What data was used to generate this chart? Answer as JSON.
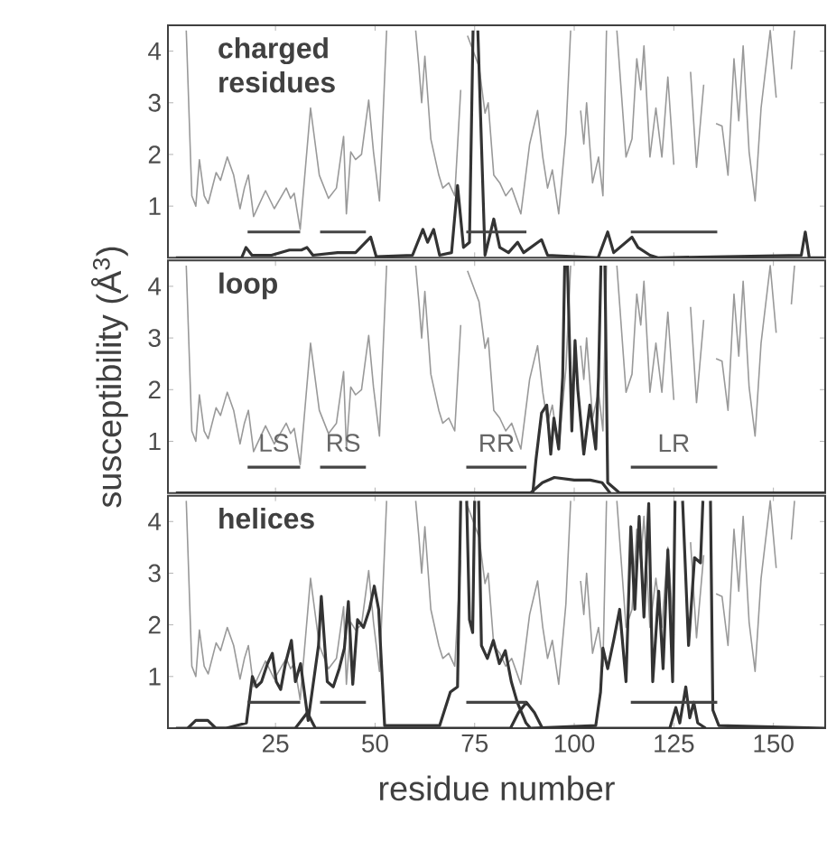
{
  "chart_data": [
    {
      "type": "line",
      "title": "charged residues",
      "xlim": [
        -2,
        163
      ],
      "ylim": [
        0,
        4.5
      ],
      "xticks": [
        25,
        50,
        75,
        100,
        125,
        150
      ],
      "yticks": [
        1,
        2,
        3,
        4
      ],
      "tick_labels": "y",
      "series": [
        {
          "color": "#999999",
          "x": [
            2.6,
            4.0,
            5.0,
            5.9,
            7.1,
            8.1,
            10.1,
            11.2,
            12.9,
            14.5,
            16.1,
            17.2,
            18.2,
            19.5,
            22.5,
            24.7,
            27.7,
            28.8,
            29.7,
            31.2,
            33.8,
            36.0,
            38.3,
            40.3,
            42.1,
            42.8,
            43.9,
            45.1,
            46.6,
            48.4,
            49.6,
            51.1,
            52.9,
            56,
            60.2,
            61.0,
            61.7,
            62.5,
            64.0,
            66.0,
            67.0,
            68.5,
            70.0,
            71.5,
            72.5,
            73.2,
            76.1,
            77.6,
            78.4,
            79.8,
            81.3,
            82.8,
            84.3,
            86.6,
            88.8,
            90.8,
            92.1,
            93.3,
            94.5,
            96.1,
            97.9,
            99.1,
            100.5,
            101.6,
            102.4,
            103.1,
            104.6,
            106.1,
            107.2,
            108.1,
            109.5,
            110.7,
            113.0,
            114.5,
            115.7,
            116.7,
            117.5,
            119.0,
            120.5,
            122.0,
            123.5,
            125.0,
            127,
            129.2,
            130.7,
            132.5,
            134.0,
            135.6,
            137.1,
            138.6,
            140.1,
            141.3,
            142.4,
            143.9,
            145.4,
            146.9,
            149.2,
            150.7,
            152.2,
            154.5,
            155.3
          ],
          "values": [
            4.4,
            1.2,
            1.0,
            1.9,
            1.2,
            1.05,
            1.65,
            1.5,
            1.95,
            1.6,
            0.95,
            1.35,
            1.6,
            0.8,
            1.3,
            0.95,
            1.35,
            1.15,
            1.25,
            0.55,
            2.9,
            1.6,
            1.15,
            1.35,
            2.35,
            0.85,
            2.05,
            1.9,
            2.0,
            3.05,
            2.05,
            1.1,
            4.4,
            null,
            4.4,
            3.7,
            3.0,
            3.9,
            2.3,
            1.6,
            1.35,
            1.45,
            1.2,
            3.25,
            null,
            4.3,
            3.7,
            2.8,
            3.0,
            1.6,
            1.45,
            1.2,
            1.35,
            0.85,
            2.2,
            2.85,
            1.95,
            1.35,
            1.7,
            0.85,
            2.4,
            4.4,
            null,
            2.85,
            2.2,
            3.0,
            1.45,
            1.95,
            1.2,
            4.4,
            null,
            4.4,
            1.95,
            2.3,
            3.85,
            3.25,
            4.1,
            1.95,
            2.9,
            1.95,
            3.5,
            1.8,
            null,
            3.6,
            1.75,
            3.35,
            null,
            2.6,
            2.55,
            1.6,
            3.85,
            2.65,
            4.1,
            2.05,
            1.1,
            2.9,
            4.4,
            3.1,
            null,
            3.65,
            4.4
          ]
        },
        {
          "color": "#333333",
          "x": [
            0,
            16.5,
            17.6,
            19.1,
            24,
            28.5,
            31.5,
            32.9,
            34.4,
            40.6,
            45.1,
            48.9,
            50.3,
            59.4,
            62,
            63.2,
            64.7,
            66.2,
            69.2,
            70.7,
            72.2,
            73.7,
            74.6,
            75.2,
            75.8,
            77.6,
            79.8,
            81.3,
            83.5,
            85.8,
            87.3,
            91.8,
            93.3,
            106,
            108.4,
            109.9,
            114.5,
            116,
            119,
            121,
            157,
            158,
            159,
            163
          ],
          "values": [
            0,
            0,
            0.2,
            0.05,
            0.05,
            0.15,
            0.15,
            0.2,
            0.05,
            0.1,
            0.1,
            0.4,
            0.02,
            0.05,
            0.55,
            0.3,
            0.55,
            0.05,
            0.1,
            1.4,
            0.2,
            0.3,
            4.4,
            null,
            4.4,
            0.05,
            0.75,
            0.2,
            0.1,
            0.3,
            0.1,
            0.35,
            0.05,
            0,
            0.5,
            0.1,
            0.4,
            0.2,
            0.05,
            0,
            0.05,
            0.5,
            0,
            0
          ]
        },
        {
          "color": "#444444",
          "x": [
            18,
            31.2
          ],
          "values": [
            0.5,
            0.5
          ]
        },
        {
          "color": "#444444",
          "x": [
            36.2,
            47.7
          ],
          "values": [
            0.5,
            0.5
          ]
        },
        {
          "color": "#444444",
          "x": [
            72.9,
            88
          ],
          "values": [
            0.5,
            0.5
          ]
        },
        {
          "color": "#444444",
          "x": [
            114.2,
            135.9
          ],
          "values": [
            0.5,
            0.5
          ]
        }
      ]
    },
    {
      "type": "line",
      "title": "loop",
      "ylabel": "susceptibility (Å$^{3}$)",
      "xlim": [
        -2,
        163
      ],
      "ylim": [
        0,
        4.5
      ],
      "xticks": [
        25,
        50,
        75,
        100,
        125,
        150
      ],
      "yticks": [
        1,
        2,
        3,
        4
      ],
      "tick_labels": "y",
      "annotations": [
        {
          "text": "LS",
          "x": 24.6,
          "y": 0.5
        },
        {
          "text": "RS",
          "x": 42,
          "y": 0.5
        },
        {
          "text": "RR",
          "x": 80.5,
          "y": 0.5
        },
        {
          "text": "LR",
          "x": 125,
          "y": 0.5
        }
      ],
      "series": [
        {
          "color": "#999999",
          "x": [
            2.6,
            4.0,
            5.0,
            5.9,
            7.1,
            8.1,
            10.1,
            11.2,
            12.9,
            14.5,
            16.1,
            17.2,
            18.2,
            19.5,
            22.5,
            24.7,
            27.7,
            28.8,
            29.7,
            31.2,
            33.8,
            36.0,
            38.3,
            40.3,
            42.1,
            42.8,
            43.9,
            45.1,
            46.6,
            48.4,
            49.6,
            51.1,
            52.9,
            56,
            60.2,
            61.0,
            61.7,
            62.5,
            64.0,
            66.0,
            67.0,
            68.5,
            70.0,
            71.5,
            72.5,
            73.2,
            76.1,
            77.6,
            78.4,
            79.8,
            81.3,
            82.8,
            84.3,
            86.6,
            88.8,
            90.8,
            92.1,
            93.3,
            94.5,
            96.1,
            97.9,
            99.1,
            100.5,
            101.6,
            102.4,
            103.1,
            104.6,
            106.1,
            107.2,
            108.1,
            109.5,
            110.7,
            113.0,
            114.5,
            115.7,
            116.7,
            117.5,
            119.0,
            120.5,
            122.0,
            123.5,
            125.0,
            127,
            129.2,
            130.7,
            132.5,
            134.0,
            135.6,
            137.1,
            138.6,
            140.1,
            141.3,
            142.4,
            143.9,
            145.4,
            146.9,
            149.2,
            150.7,
            152.2,
            154.5,
            155.3
          ],
          "values": [
            4.4,
            1.2,
            1.0,
            1.9,
            1.2,
            1.05,
            1.65,
            1.5,
            1.95,
            1.6,
            0.95,
            1.35,
            1.6,
            0.8,
            1.3,
            0.95,
            1.35,
            1.15,
            1.25,
            0.55,
            2.9,
            1.6,
            1.15,
            1.35,
            2.35,
            0.85,
            2.05,
            1.9,
            2.0,
            3.05,
            2.05,
            1.1,
            4.4,
            null,
            4.4,
            3.7,
            3.0,
            3.9,
            2.3,
            1.6,
            1.35,
            1.45,
            1.2,
            3.25,
            null,
            4.3,
            3.7,
            2.8,
            3.0,
            1.6,
            1.45,
            1.2,
            1.35,
            0.85,
            2.2,
            2.85,
            1.95,
            1.35,
            1.7,
            0.85,
            2.4,
            4.4,
            null,
            2.85,
            2.2,
            3.0,
            1.45,
            1.95,
            1.2,
            4.4,
            null,
            4.4,
            1.95,
            2.3,
            3.85,
            3.25,
            4.1,
            1.95,
            2.9,
            1.95,
            3.5,
            1.8,
            null,
            3.6,
            1.75,
            3.35,
            null,
            2.6,
            2.55,
            1.6,
            3.85,
            2.65,
            4.1,
            2.05,
            1.1,
            2.9,
            4.4,
            3.1,
            null,
            3.65,
            4.4
          ]
        },
        {
          "color": "#333333",
          "x": [
            0,
            89.6,
            90.4,
            91.8,
            93.1,
            94.1,
            94.9,
            96.1,
            97.1,
            97.6,
            97.9,
            98.3,
            99.4,
            100.2,
            100.9,
            102.4,
            103.9,
            105.4,
            106.1,
            106.7,
            107.2,
            107.7,
            108.4,
            111.4,
            163
          ],
          "values": [
            0,
            0,
            0.65,
            1.55,
            1.7,
            0.75,
            1.45,
            0.85,
            2.25,
            4.4,
            null,
            4.4,
            1.2,
            2.95,
            2.0,
            0.75,
            1.7,
            0.85,
            2.25,
            4.4,
            null,
            4.4,
            0.2,
            0,
            0
          ]
        },
        {
          "color": "#333333",
          "x": [
            89,
            92,
            95,
            100,
            104,
            107,
            109
          ],
          "values": [
            0,
            0.2,
            0.3,
            0.25,
            0.25,
            0.2,
            0
          ]
        },
        {
          "color": "#444444",
          "x": [
            18,
            31.2
          ],
          "values": [
            0.5,
            0.5
          ]
        },
        {
          "color": "#444444",
          "x": [
            36.2,
            47.7
          ],
          "values": [
            0.5,
            0.5
          ]
        },
        {
          "color": "#444444",
          "x": [
            72.9,
            88
          ],
          "values": [
            0.5,
            0.5
          ]
        },
        {
          "color": "#444444",
          "x": [
            114.2,
            135.9
          ],
          "values": [
            0.5,
            0.5
          ]
        }
      ]
    },
    {
      "type": "line",
      "title": "helices",
      "xlabel": "residue number",
      "xlim": [
        -2,
        163
      ],
      "ylim": [
        0,
        4.5
      ],
      "xticks": [
        25,
        50,
        75,
        100,
        125,
        150
      ],
      "yticks": [
        1,
        2,
        3,
        4
      ],
      "series": [
        {
          "color": "#999999",
          "x": [
            2.6,
            4.0,
            5.0,
            5.9,
            7.1,
            8.1,
            10.1,
            11.2,
            12.9,
            14.5,
            16.1,
            17.2,
            18.2,
            19.5,
            22.5,
            24.7,
            27.7,
            28.8,
            29.7,
            31.2,
            33.8,
            36.0,
            38.3,
            40.3,
            42.1,
            42.8,
            43.9,
            45.1,
            46.6,
            48.4,
            49.6,
            51.1,
            52.9,
            56,
            60.2,
            61.0,
            61.7,
            62.5,
            64.0,
            66.0,
            67.0,
            68.5,
            70.0,
            71.5,
            72.5,
            73.2,
            76.1,
            77.6,
            78.4,
            79.8,
            81.3,
            82.8,
            84.3,
            86.6,
            88.8,
            90.8,
            92.1,
            93.3,
            94.5,
            96.1,
            97.9,
            99.1,
            100.5,
            101.6,
            102.4,
            103.1,
            104.6,
            106.1,
            107.2,
            108.1,
            109.5,
            110.7,
            113.0,
            114.5,
            115.7,
            116.7,
            117.5,
            119.0,
            120.5,
            122.0,
            123.5,
            125.0,
            127,
            129.2,
            130.7,
            132.5,
            134.0,
            135.6,
            137.1,
            138.6,
            140.1,
            141.3,
            142.4,
            143.9,
            145.4,
            146.9,
            149.2,
            150.7,
            152.2,
            154.5,
            155.3
          ],
          "values": [
            4.4,
            1.2,
            1.0,
            1.9,
            1.2,
            1.05,
            1.65,
            1.5,
            1.95,
            1.6,
            0.95,
            1.35,
            1.6,
            0.8,
            1.3,
            0.95,
            1.35,
            1.15,
            1.25,
            0.55,
            2.9,
            1.6,
            1.15,
            1.35,
            2.35,
            0.85,
            2.05,
            1.9,
            2.0,
            3.05,
            2.05,
            1.1,
            4.4,
            null,
            4.4,
            3.7,
            3.0,
            3.9,
            2.3,
            1.6,
            1.35,
            1.45,
            1.2,
            3.25,
            null,
            4.3,
            3.7,
            2.8,
            3.0,
            1.6,
            1.45,
            1.2,
            1.35,
            0.85,
            2.2,
            2.85,
            1.95,
            1.35,
            1.7,
            0.85,
            2.4,
            4.4,
            null,
            2.85,
            2.2,
            3.0,
            1.45,
            1.95,
            1.2,
            4.4,
            null,
            4.4,
            1.95,
            2.3,
            3.85,
            3.25,
            4.1,
            1.95,
            2.9,
            1.95,
            3.5,
            1.8,
            null,
            3.6,
            1.75,
            3.35,
            null,
            2.6,
            2.55,
            1.6,
            3.85,
            2.65,
            4.1,
            2.05,
            1.1,
            2.9,
            4.4,
            3.1,
            null,
            3.65,
            4.4
          ]
        },
        {
          "color": "#333333",
          "x": [
            0,
            12.6,
            17.7,
            19.2,
            20.2,
            21.5,
            23,
            24.2,
            25.2,
            26.3,
            27.5,
            29,
            30,
            31.3,
            33.2,
            35.8,
            36.5,
            38,
            39.5,
            41,
            42.3,
            43.3,
            44.4,
            45.6,
            47.1,
            48.6,
            49.8,
            50.9,
            52.4,
            66.2,
            68.9,
            70.7,
            71.5,
            72.2,
            73,
            73.7,
            74.5,
            75.0,
            75.5,
            76.0,
            76.7,
            78.2,
            79.7,
            81.2,
            82.7,
            84.2,
            85.7,
            87.9,
            89,
            105.4,
            106.6,
            107.2,
            108.4,
            109.9,
            111.4,
            113,
            114.2,
            115.2,
            116.3,
            117.5,
            118.7,
            119.7,
            121.2,
            122.3,
            123.5,
            124.7,
            125.3,
            126.2,
            127.2,
            128.7,
            130.2,
            131.7,
            132.3,
            133.2,
            134.2,
            134.8,
            136.3,
            163
          ],
          "values": [
            0,
            0,
            0.1,
            1.0,
            0.8,
            0.9,
            1.25,
            1.45,
            0.9,
            0.75,
            1.25,
            1.7,
            0.9,
            1.25,
            0.15,
            1.6,
            2.55,
            0.9,
            0.8,
            1.15,
            1.55,
            2.45,
            0.85,
            2.1,
            1.95,
            2.3,
            2.75,
            2.3,
            0.05,
            0.05,
            0.7,
            0.8,
            4.4,
            null,
            4.4,
            2.1,
            1.85,
            4.4,
            null,
            4.4,
            1.6,
            1.35,
            1.7,
            1.25,
            1.5,
            0.9,
            0.5,
            0.1,
            0,
            0.05,
            0.7,
            1.55,
            1.15,
            1.7,
            2.3,
            0.9,
            3.9,
            2.3,
            4.1,
            2.15,
            4.35,
            0.9,
            2.65,
            1.15,
            3.45,
            0.9,
            4.4,
            null,
            4.4,
            1.6,
            3.3,
            3.2,
            4.4,
            null,
            4.4,
            0.35,
            0.05,
            0
          ]
        },
        {
          "color": "#333333",
          "x": [
            3,
            5,
            8,
            10,
            30,
            33,
            35,
            84,
            86,
            88,
            90,
            92,
            124,
            125.5,
            126.5,
            128,
            129,
            130,
            131,
            133
          ],
          "values": [
            0,
            0.15,
            0.15,
            0,
            0,
            0.3,
            0,
            0,
            0.3,
            0.5,
            0.3,
            0,
            0,
            0.4,
            0.1,
            0.8,
            0.2,
            0.5,
            0.1,
            0
          ]
        },
        {
          "color": "#444444",
          "x": [
            18,
            31.2
          ],
          "values": [
            0.5,
            0.5
          ]
        },
        {
          "color": "#444444",
          "x": [
            36.2,
            47.7
          ],
          "values": [
            0.5,
            0.5
          ]
        },
        {
          "color": "#444444",
          "x": [
            72.9,
            88
          ],
          "values": [
            0.5,
            0.5
          ]
        },
        {
          "color": "#444444",
          "x": [
            114.2,
            135.9
          ],
          "values": [
            0.5,
            0.5
          ]
        }
      ]
    }
  ]
}
